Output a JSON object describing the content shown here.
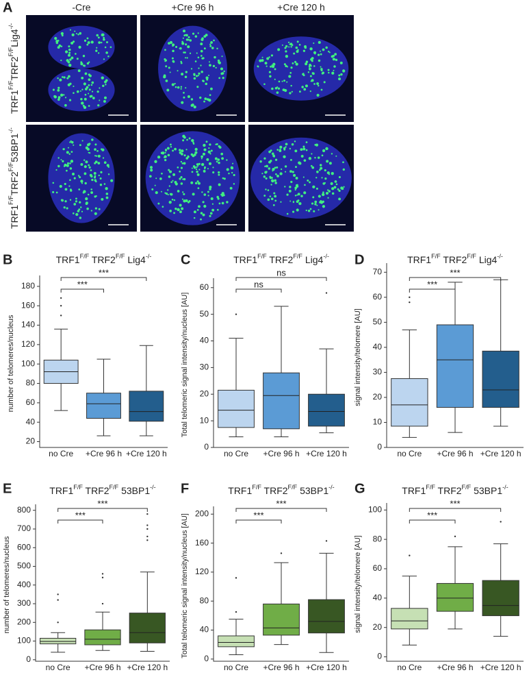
{
  "panel_a": {
    "label": "A",
    "columns": [
      "-Cre",
      "+Cre 96 h",
      "+Cre 120 h"
    ],
    "rows": [
      [
        "TRF1",
        "F/F",
        "TRF2",
        "F/F",
        "Lig4",
        "-/-"
      ],
      [
        "TRF1",
        "F/F",
        "TRF2",
        "F/F",
        "53BP1",
        "-/-"
      ]
    ]
  },
  "chart_data": [
    {
      "type": "box",
      "label": "B",
      "title": [
        "TRF1",
        "F/F",
        " TRF2",
        "F/F",
        " Lig4",
        "-/-"
      ],
      "y_label": "number of telomeres/nucleus",
      "categories": [
        "no Cre",
        "+Cre 96 h",
        "+Cre 120 h"
      ],
      "colors": [
        "#bcd5ef",
        "#5b9bd5",
        "#235e8d"
      ],
      "boxes": [
        {
          "low": 52,
          "q1": 80,
          "median": 92,
          "q3": 104,
          "high": 136,
          "outliers": [
            150,
            160,
            168
          ]
        },
        {
          "low": 26,
          "q1": 44,
          "median": 59,
          "q3": 70,
          "high": 105,
          "outliers": []
        },
        {
          "low": 26,
          "q1": 41,
          "median": 51,
          "q3": 72,
          "high": 119,
          "outliers": []
        }
      ],
      "annotations": [
        "***",
        "***"
      ],
      "ylim": [
        14,
        187
      ],
      "yticks": [
        20,
        40,
        60,
        80,
        100,
        120,
        140,
        160,
        180
      ]
    },
    {
      "type": "box",
      "label": "C",
      "title": [
        "TRF1",
        "F/F",
        " TRF2",
        "F/F",
        " Lig4",
        "-/-"
      ],
      "y_label": "Total telomeric signal intensity/nucleus [AU]",
      "categories": [
        "no Cre",
        "+Cre 96 h",
        "+Cre 120 h"
      ],
      "colors": [
        "#bcd5ef",
        "#5b9bd5",
        "#235e8d"
      ],
      "boxes": [
        {
          "low": 4,
          "q1": 7.5,
          "median": 14,
          "q3": 21.5,
          "high": 41,
          "outliers": [
            50
          ]
        },
        {
          "low": 4,
          "q1": 7,
          "median": 19.5,
          "q3": 28,
          "high": 53,
          "outliers": []
        },
        {
          "low": 5.5,
          "q1": 8,
          "median": 13.5,
          "q3": 20,
          "high": 37,
          "outliers": [
            58
          ]
        }
      ],
      "annotations": [
        "ns",
        "ns"
      ],
      "ylim": [
        0,
        62
      ],
      "yticks": [
        0,
        10,
        20,
        30,
        40,
        50,
        60
      ]
    },
    {
      "type": "box",
      "label": "D",
      "title": [
        "TRF1",
        "F/F",
        " TRF2",
        "F/F",
        " Lig4",
        "-/-"
      ],
      "y_label": "signal intensity/telomere [AU]",
      "categories": [
        "no Cre",
        "+Cre 96 h",
        "+Cre 120 h"
      ],
      "colors": [
        "#bcd5ef",
        "#5b9bd5",
        "#235e8d"
      ],
      "boxes": [
        {
          "low": 4,
          "q1": 8.5,
          "median": 17,
          "q3": 27.5,
          "high": 47,
          "outliers": [
            58,
            60
          ]
        },
        {
          "low": 6,
          "q1": 16,
          "median": 35,
          "q3": 49,
          "high": 66,
          "outliers": []
        },
        {
          "low": 8.5,
          "q1": 16,
          "median": 23,
          "q3": 38.5,
          "high": 67,
          "outliers": []
        }
      ],
      "annotations": [
        "***",
        "***"
      ],
      "ylim": [
        0,
        72
      ],
      "yticks": [
        0,
        10,
        20,
        30,
        40,
        50,
        60,
        70
      ]
    },
    {
      "type": "box",
      "label": "E",
      "title": [
        "TRF1",
        "F/F",
        " TRF2",
        "F/F",
        " 53BP1",
        "-/-"
      ],
      "y_label": "number of telomeres/nucleus",
      "categories": [
        "no Cre",
        "+Cre 96 h",
        "+Cre 120 h"
      ],
      "colors": [
        "#c6e0b4",
        "#70ad47",
        "#385723"
      ],
      "boxes": [
        {
          "low": 40,
          "q1": 85,
          "median": 98,
          "q3": 115,
          "high": 145,
          "outliers": [
            200,
            320,
            350
          ]
        },
        {
          "low": 50,
          "q1": 80,
          "median": 110,
          "q3": 160,
          "high": 255,
          "outliers": [
            300,
            440,
            460
          ]
        },
        {
          "low": 45,
          "q1": 90,
          "median": 145,
          "q3": 250,
          "high": 470,
          "outliers": [
            640,
            660,
            700,
            720,
            780
          ]
        }
      ],
      "annotations": [
        "***",
        "***"
      ],
      "ylim": [
        -8,
        810
      ],
      "yticks": [
        0,
        100,
        200,
        300,
        400,
        500,
        600,
        700,
        800
      ]
    },
    {
      "type": "box",
      "label": "F",
      "title": [
        "TRF1",
        "F/F",
        " TRF2",
        "F/F",
        " 53BP1",
        "-/-"
      ],
      "y_label": "Total telomeric signal intensity/nucleus [AU]",
      "categories": [
        "no Cre",
        "+Cre 96 h",
        "+Cre 120 h"
      ],
      "colors": [
        "#c6e0b4",
        "#70ad47",
        "#385723"
      ],
      "boxes": [
        {
          "low": 6,
          "q1": 17,
          "median": 23,
          "q3": 32,
          "high": 55,
          "outliers": [
            65,
            112
          ]
        },
        {
          "low": 20,
          "q1": 33,
          "median": 43,
          "q3": 76,
          "high": 133,
          "outliers": [
            146
          ]
        },
        {
          "low": 9,
          "q1": 36,
          "median": 52,
          "q3": 82,
          "high": 146,
          "outliers": [
            163
          ]
        }
      ],
      "annotations": [
        "***",
        "***"
      ],
      "ylim": [
        -3,
        205
      ],
      "yticks": [
        0,
        40,
        80,
        120,
        160,
        200
      ]
    },
    {
      "type": "box",
      "label": "G",
      "title": [
        "TRF1",
        "F/F",
        " TRF2",
        "F/F",
        " 53BP1",
        "-/-"
      ],
      "y_label": "signal intensity/telomere [AU]",
      "categories": [
        "no Cre",
        "+Cre 96 h",
        "+Cre 120 h"
      ],
      "colors": [
        "#c6e0b4",
        "#70ad47",
        "#385723"
      ],
      "boxes": [
        {
          "low": 8,
          "q1": 19,
          "median": 24.5,
          "q3": 33,
          "high": 55,
          "outliers": [
            69
          ]
        },
        {
          "low": 19,
          "q1": 31,
          "median": 40,
          "q3": 50,
          "high": 75,
          "outliers": [
            82
          ]
        },
        {
          "low": 14,
          "q1": 28,
          "median": 35,
          "q3": 52,
          "high": 77,
          "outliers": [
            92
          ]
        }
      ],
      "annotations": [
        "***",
        "***"
      ],
      "ylim": [
        -3,
        102
      ],
      "yticks": [
        0,
        20,
        40,
        60,
        80,
        100
      ]
    }
  ]
}
